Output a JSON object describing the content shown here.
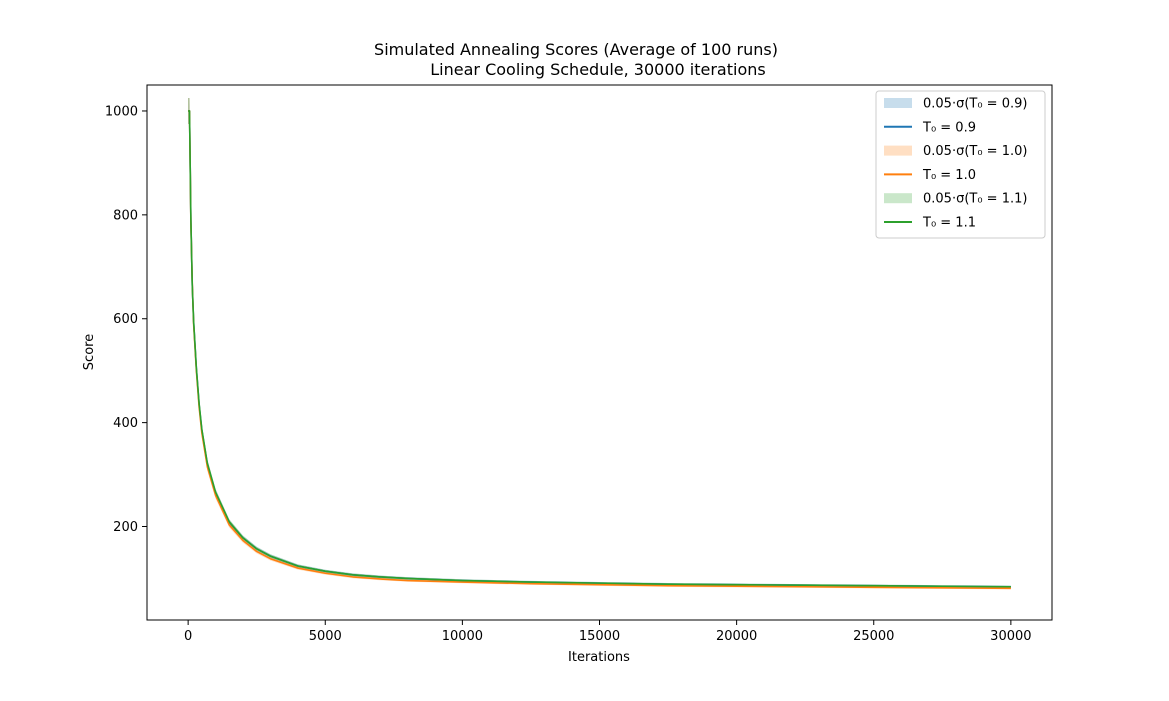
{
  "chart_data": {
    "type": "line",
    "title": "Simulated Annealing Scores (Average of 100 runs)",
    "subtitle": "Linear Cooling Schedule, 30000 iterations",
    "xlabel": "Iterations",
    "ylabel": "Score",
    "xlim": [
      -1500,
      31500
    ],
    "ylim": [
      20,
      1050
    ],
    "xticks": [
      0,
      5000,
      10000,
      15000,
      20000,
      25000,
      30000
    ],
    "yticks": [
      200,
      400,
      600,
      800,
      1000
    ],
    "grid": false,
    "legend_position": "top-right",
    "legend": [
      {
        "label": "0.05·σ(T₀ = 0.9)",
        "kind": "band",
        "color": "#1f77b4"
      },
      {
        "label": "T₀ = 0.9",
        "kind": "line",
        "color": "#1f77b4"
      },
      {
        "label": "0.05·σ(T₀ = 1.0)",
        "kind": "band",
        "color": "#ff7f0e"
      },
      {
        "label": "T₀ = 1.0",
        "kind": "line",
        "color": "#ff7f0e"
      },
      {
        "label": "0.05·σ(T₀ = 1.1)",
        "kind": "band",
        "color": "#2ca02c"
      },
      {
        "label": "T₀ = 1.1",
        "kind": "line",
        "color": "#2ca02c"
      }
    ],
    "series": [
      {
        "name": "T₀ = 0.9",
        "color": "#1f77b4",
        "x": [
          0,
          50,
          100,
          150,
          200,
          300,
          400,
          500,
          700,
          1000,
          1500,
          2000,
          2500,
          3000,
          4000,
          5000,
          6000,
          7000,
          8000,
          10000,
          12500,
          15000,
          17500,
          20000,
          22500,
          25000,
          27500,
          30000
        ],
        "y": [
          1000,
          1000,
          790,
          665,
          595,
          505,
          435,
          385,
          320,
          265,
          208,
          178,
          157,
          143,
          124,
          114,
          107,
          103,
          100,
          96,
          93,
          91,
          89,
          88,
          87,
          86,
          85,
          84
        ]
      },
      {
        "name": "T₀ = 1.0",
        "color": "#ff7f0e",
        "x": [
          0,
          50,
          100,
          150,
          200,
          300,
          400,
          500,
          700,
          1000,
          1500,
          2000,
          2500,
          3000,
          4000,
          5000,
          6000,
          7000,
          8000,
          10000,
          12500,
          15000,
          17500,
          20000,
          22500,
          25000,
          27500,
          30000
        ],
        "y": [
          1000,
          1000,
          785,
          670,
          590,
          500,
          430,
          380,
          315,
          260,
          203,
          173,
          152,
          138,
          120,
          110,
          103,
          99,
          96,
          93,
          90,
          88,
          86,
          85,
          84,
          83,
          82,
          81
        ]
      },
      {
        "name": "T₀ = 1.1",
        "color": "#2ca02c",
        "x": [
          0,
          50,
          100,
          150,
          200,
          300,
          400,
          500,
          700,
          1000,
          1500,
          2000,
          2500,
          3000,
          4000,
          5000,
          6000,
          7000,
          8000,
          10000,
          12500,
          15000,
          17500,
          20000,
          22500,
          25000,
          27500,
          30000
        ],
        "y": [
          1000,
          1000,
          790,
          665,
          595,
          505,
          437,
          387,
          322,
          266,
          209,
          178,
          157,
          143,
          124,
          114,
          107,
          103,
          100,
          96,
          93,
          91,
          89,
          88,
          87,
          86,
          85,
          84
        ]
      }
    ]
  }
}
